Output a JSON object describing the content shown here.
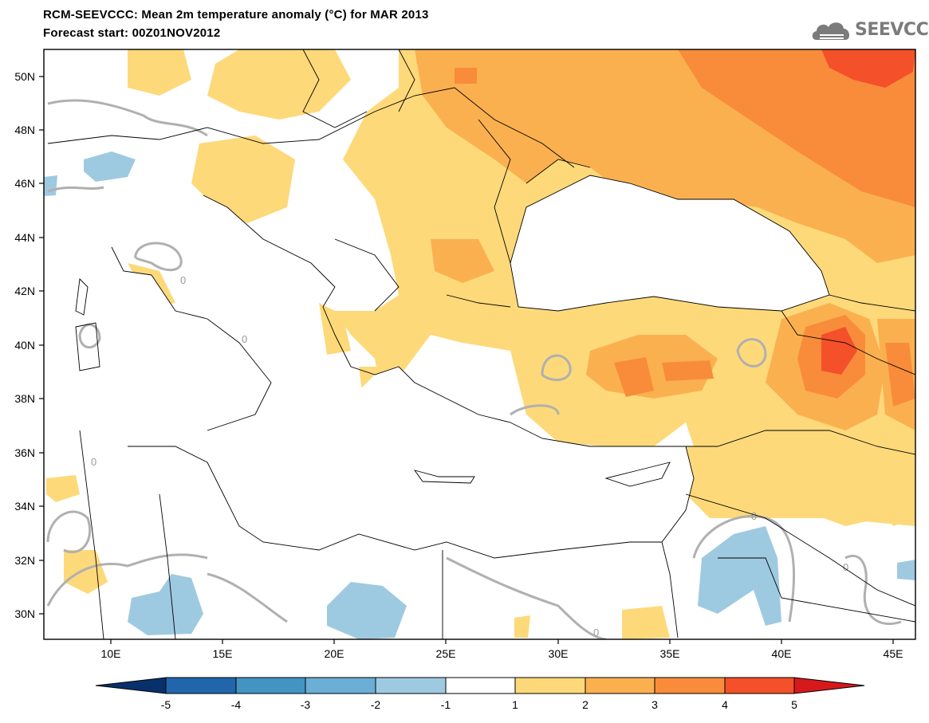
{
  "header": {
    "title_line1": "RCM-SEEVCCC: Mean 2m temperature anomaly (°C) for MAR 2013",
    "title_line2": "Forecast start: 00Z01NOV2012"
  },
  "logo": {
    "text": "SEEVCCC",
    "icon": "cloud-icon"
  },
  "map": {
    "lon_range": [
      7,
      46
    ],
    "lat_range": [
      29,
      51
    ],
    "lon_labels": [
      "10E",
      "15E",
      "20E",
      "25E",
      "30E",
      "35E",
      "40E",
      "45E"
    ],
    "lat_labels": [
      "30N",
      "32N",
      "34N",
      "36N",
      "38N",
      "40N",
      "42N",
      "44N",
      "46N",
      "48N",
      "50N"
    ],
    "contour_label": "0"
  },
  "colorbar": {
    "ticks": [
      "-5",
      "-4",
      "-3",
      "-2",
      "-1",
      "1",
      "2",
      "3",
      "4",
      "5"
    ],
    "colors": [
      "#08306b",
      "#2166ac",
      "#4393c3",
      "#6baed6",
      "#9ecae1",
      "#ffffff",
      "#fdd97a",
      "#fbb050",
      "#f88c3a",
      "#f4502a",
      "#d7191c"
    ]
  }
}
